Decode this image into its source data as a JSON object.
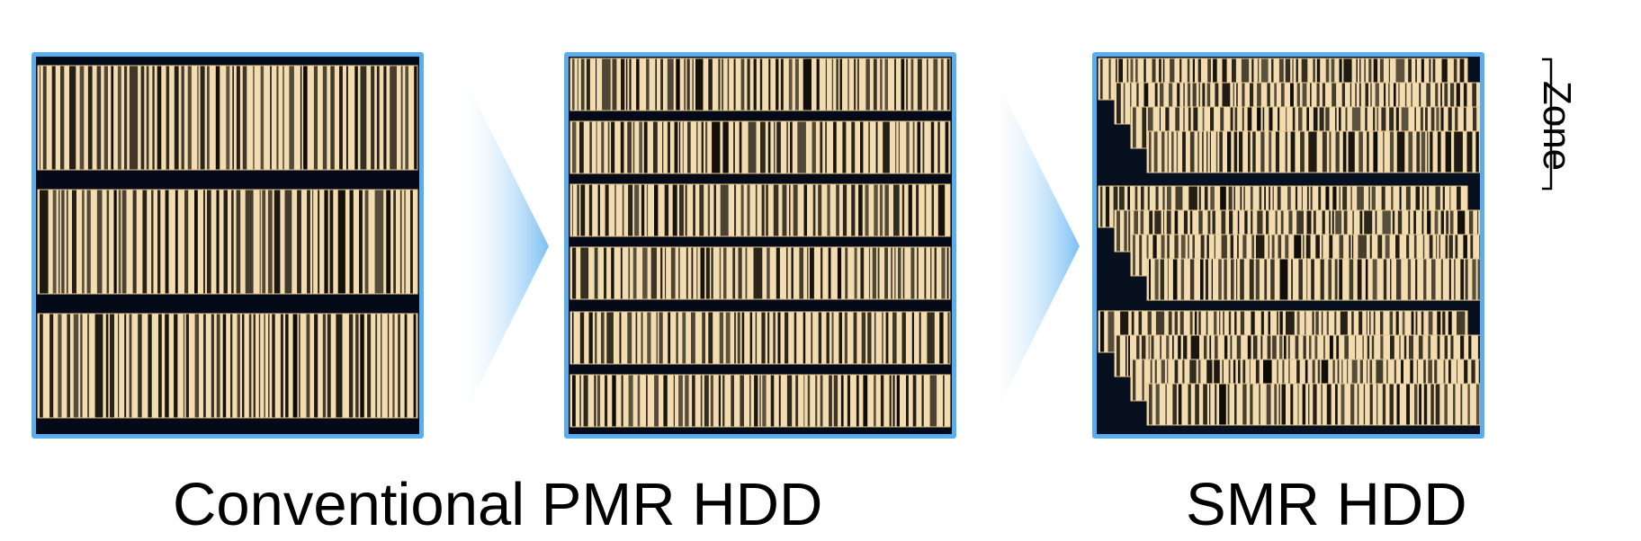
{
  "captions": {
    "pmr": "Conventional PMR HDD",
    "smr": "SMR HDD"
  },
  "zone_label": "Zone",
  "panels": [
    {
      "name": "conventional-pmr-3-tracks",
      "tracks": 3
    },
    {
      "name": "conventional-pmr-6-tracks",
      "tracks": 6
    },
    {
      "name": "smr-shingled-zones",
      "zones": 3,
      "tracks_per_zone": 4
    }
  ],
  "colors": {
    "frame": "#5aaef0",
    "background": "#050a18",
    "track_light": "#f3dcb0",
    "track_dark": "#0b0904",
    "arrow": "#8fcaf5"
  }
}
